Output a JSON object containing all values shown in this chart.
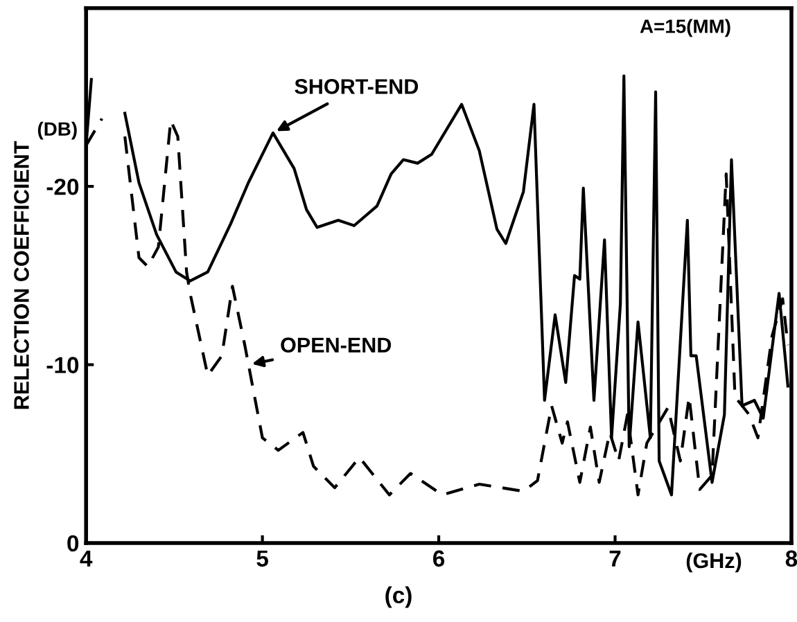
{
  "chart_data": {
    "type": "line",
    "xlabel": "(GHz)",
    "ylabel": "RELECTION COEFFICIENT",
    "xlim": [
      4,
      8
    ],
    "ylim": [
      0,
      -30
    ],
    "xticks": [
      4,
      5,
      6,
      7,
      8
    ],
    "yticks": [
      0,
      -10,
      -20
    ],
    "grid": false,
    "legend": false,
    "marker": "none",
    "series": [
      {
        "color": "#000000",
        "line_style": "solid",
        "x": [
          4.0,
          4.03,
          4.06,
          4.16,
          4.22,
          4.3,
          4.4,
          4.51,
          4.59,
          4.69,
          4.82,
          4.92,
          5.06,
          5.18,
          5.25,
          5.31,
          5.43,
          5.52,
          5.65,
          5.73,
          5.8,
          5.88,
          5.96,
          6.13,
          6.23,
          6.33,
          6.38,
          6.48,
          6.54,
          6.6,
          6.66,
          6.72,
          6.77,
          6.8,
          6.82,
          6.88,
          6.94,
          6.98,
          7.03,
          7.05,
          7.08,
          7.13,
          7.2,
          7.23,
          7.25,
          7.32,
          7.41,
          7.43,
          7.46,
          7.55,
          7.62,
          7.66,
          7.72,
          7.79,
          7.84,
          7.93,
          7.98
        ],
        "values": [
          -22.3,
          -26.0,
          null,
          null,
          -24.1,
          -20.2,
          -17.3,
          -15.2,
          -14.7,
          -15.2,
          -17.9,
          -20.2,
          -23.0,
          -21.0,
          -18.7,
          -17.7,
          -18.1,
          -17.8,
          -18.9,
          -20.7,
          -21.5,
          -21.3,
          -21.8,
          -24.6,
          -22.0,
          -17.6,
          -16.8,
          -19.7,
          -24.6,
          -8.0,
          -12.8,
          -9.0,
          -15.0,
          -14.8,
          -19.9,
          -8.0,
          -17.0,
          -5.9,
          -13.4,
          -26.2,
          -5.4,
          -12.4,
          -5.9,
          -25.3,
          -4.6,
          -2.7,
          -18.1,
          -10.5,
          -10.5,
          -3.4,
          -7.2,
          -21.5,
          -7.7,
          -8.0,
          -7.0,
          -14.0,
          -8.8
        ]
      },
      {
        "color": "#000000",
        "line_style": "dashed",
        "x": [
          4.0,
          4.09,
          4.14,
          4.16,
          4.22,
          4.3,
          4.35,
          4.41,
          4.48,
          4.52,
          4.57,
          4.59,
          4.69,
          4.77,
          4.83,
          4.9,
          5.0,
          5.09,
          5.23,
          5.29,
          5.41,
          5.55,
          5.72,
          5.84,
          6.02,
          6.23,
          6.48,
          6.56,
          6.64,
          6.7,
          6.73,
          6.8,
          6.86,
          6.91,
          6.97,
          7.02,
          7.07,
          7.13,
          7.18,
          7.3,
          7.37,
          7.42,
          7.48,
          7.55,
          7.63,
          7.68,
          7.76,
          7.81,
          7.89,
          7.95,
          7.98
        ],
        "values": [
          -22.3,
          -23.8,
          null,
          null,
          -22.8,
          -16.0,
          -15.5,
          -16.6,
          -23.7,
          -22.8,
          -15.2,
          -14.0,
          -9.4,
          -10.5,
          -14.4,
          -11.1,
          -5.9,
          -5.2,
          -6.2,
          -4.3,
          -3.1,
          -4.8,
          -2.7,
          -3.9,
          -2.7,
          -3.3,
          -2.9,
          -3.5,
          -7.7,
          -5.6,
          -6.8,
          -3.4,
          -6.5,
          -3.4,
          -6.2,
          -4.6,
          -7.2,
          -2.7,
          -5.6,
          -7.6,
          -4.6,
          -8.2,
          -3.0,
          -3.8,
          -20.7,
          -8.2,
          -7.2,
          -5.9,
          -11.6,
          -13.7,
          -11.1
        ]
      }
    ],
    "annotations": [
      {
        "text": "SHORT-END",
        "x": 5.06,
        "y": -23.0
      },
      {
        "text": "OPEN-END",
        "x": 4.92,
        "y": -10.0
      },
      "(DB)",
      "A=15(MM)",
      "(c)"
    ]
  }
}
